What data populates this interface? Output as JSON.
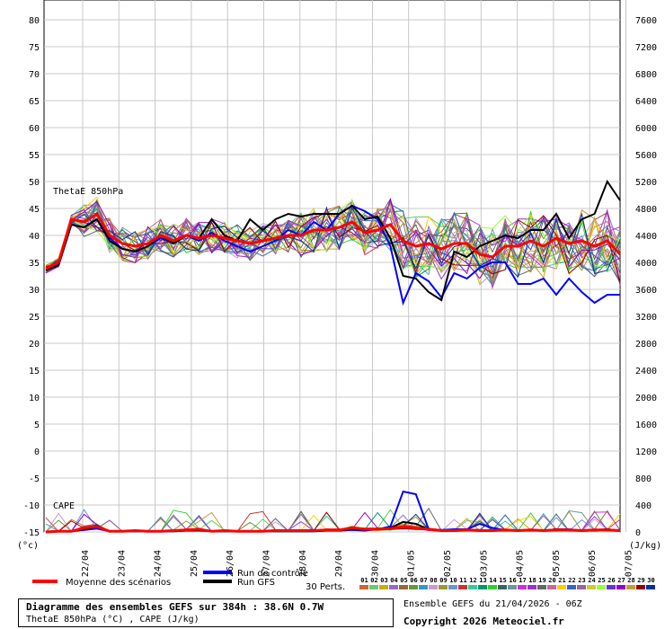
{
  "chart_data": {
    "type": "line",
    "title": "Diagramme des ensembles GEFS sur 384h : 38.6N 0.7W",
    "subtitle": "ThetaE 850hPa (°C) , CAPE (J/kg)",
    "ensemble_label": "Ensemble GEFS du 21/04/2026 - 06Z",
    "copyright": "Copyright 2026 Meteociel.fr",
    "y_left": {
      "unit": "(°c)",
      "min": -15,
      "max": 80,
      "ticks": [
        80,
        75,
        70,
        65,
        60,
        55,
        50,
        45,
        40,
        35,
        30,
        25,
        20,
        15,
        10,
        5,
        0,
        -5,
        -10,
        -15
      ]
    },
    "y_right": {
      "unit": "(J/kg)",
      "min": 0,
      "max": 7600,
      "ticks": [
        7600,
        7200,
        6800,
        6400,
        6000,
        5600,
        5200,
        4800,
        4400,
        4000,
        3600,
        3200,
        2800,
        2400,
        2000,
        1600,
        1200,
        800,
        400,
        0
      ]
    },
    "x_ticks": [
      "22/04",
      "23/04",
      "24/04",
      "25/04",
      "26/04",
      "27/04",
      "28/04",
      "29/04",
      "30/04",
      "01/05",
      "02/05",
      "03/05",
      "04/05",
      "05/05",
      "06/05",
      "07/05"
    ],
    "panel_labels": {
      "thetae": "ThetaE 850hPa",
      "cape": "CAPE"
    },
    "legend": {
      "mean": "Moyenne des scénarios",
      "control": "Run de contrôle",
      "gfs": "Run GFS",
      "perts_label": "30 Perts.",
      "pert_numbers": [
        "01",
        "02",
        "03",
        "04",
        "05",
        "06",
        "07",
        "08",
        "09",
        "10",
        "11",
        "12",
        "13",
        "14",
        "15",
        "16",
        "17",
        "18",
        "19",
        "20",
        "21",
        "22",
        "23",
        "24",
        "25",
        "26",
        "27",
        "28",
        "29",
        "30"
      ]
    },
    "colors": {
      "mean": "#ff0000",
      "control": "#0000ff",
      "gfs": "#000000",
      "perts": [
        "#cc6633",
        "#66cc66",
        "#ccaa00",
        "#9966cc",
        "#996633",
        "#669933",
        "#3399cc",
        "#cc99cc",
        "#999933",
        "#6699cc",
        "#cc3333",
        "#33cc99",
        "#009966",
        "#33cc33",
        "#336666",
        "#669999",
        "#cc33cc",
        "#9933cc",
        "#666666",
        "#cc6699",
        "#ffcc00",
        "#3366cc",
        "#996699",
        "#cccc33",
        "#99ff33",
        "#6633cc",
        "#9900cc",
        "#cc9933",
        "#990000",
        "#003399"
      ]
    },
    "thetae_mean": [
      33.8,
      35,
      43,
      42.5,
      44,
      40,
      38.5,
      38,
      38.5,
      40,
      39,
      40,
      39.5,
      40,
      39.5,
      39,
      38.5,
      39,
      39.5,
      40,
      40,
      41,
      41,
      41.5,
      42.5,
      40.5,
      41,
      42,
      39,
      38,
      38.5,
      37.5,
      38.5,
      38.5,
      36.5,
      36,
      38,
      38,
      39,
      38,
      39.5,
      38.5,
      39,
      38,
      39,
      36.5
    ],
    "thetae_control": [
      33.5,
      34.5,
      42,
      41.5,
      43,
      39.5,
      37.5,
      37,
      38,
      39.5,
      38.5,
      40,
      39,
      40.5,
      39,
      38,
      37,
      38,
      39,
      41,
      40,
      42.5,
      41,
      44,
      45.5,
      44.5,
      43,
      38,
      27.5,
      33,
      31.5,
      28.5,
      33,
      32,
      34,
      35,
      35,
      31,
      31,
      32,
      29,
      32,
      29.5,
      27.5,
      29,
      29
    ],
    "thetae_gfs": [
      33.5,
      34.5,
      42,
      41.5,
      43,
      39,
      37.5,
      37,
      38,
      40,
      38.5,
      40,
      39.5,
      43,
      40,
      39,
      43,
      41,
      43,
      44,
      43.5,
      44,
      44,
      44,
      45.5,
      43,
      43.5,
      39.5,
      32.5,
      32,
      29.5,
      28,
      37,
      36,
      38,
      39,
      40,
      39.5,
      41,
      41,
      44,
      39.5,
      43,
      44,
      50,
      46.5
    ],
    "cape_mean": [
      0,
      10,
      10,
      60,
      80,
      10,
      10,
      20,
      10,
      10,
      20,
      30,
      40,
      10,
      20,
      10,
      10,
      10,
      20,
      20,
      20,
      20,
      30,
      30,
      60,
      40,
      40,
      50,
      80,
      60,
      40,
      20,
      20,
      30,
      20,
      20,
      30,
      20,
      30,
      20,
      30,
      30,
      20,
      30,
      30,
      20
    ],
    "cape_control": [
      0,
      10,
      10,
      30,
      50,
      10,
      10,
      10,
      10,
      10,
      10,
      20,
      20,
      10,
      10,
      10,
      10,
      10,
      10,
      10,
      10,
      10,
      20,
      20,
      30,
      20,
      40,
      80,
      600,
      560,
      40,
      30,
      40,
      40,
      120,
      60,
      30,
      20,
      20,
      20,
      40,
      40,
      20,
      20,
      40,
      20
    ],
    "cape_gfs": [
      0,
      10,
      10,
      40,
      80,
      10,
      10,
      10,
      10,
      10,
      10,
      20,
      30,
      10,
      10,
      10,
      10,
      10,
      10,
      10,
      10,
      10,
      20,
      20,
      40,
      30,
      40,
      60,
      150,
      120,
      40,
      20,
      20,
      30,
      30,
      20,
      30,
      20,
      30,
      20,
      40,
      30,
      20,
      30,
      40,
      20
    ]
  },
  "info": {
    "title": "Diagramme des ensembles GEFS sur 384h : 38.6N 0.7W",
    "subtitle": "ThetaE 850hPa (°C) , CAPE (J/kg)",
    "ensemble": "Ensemble GEFS du 21/04/2026 - 06Z",
    "copyright": "Copyright 2026 Meteociel.fr"
  }
}
